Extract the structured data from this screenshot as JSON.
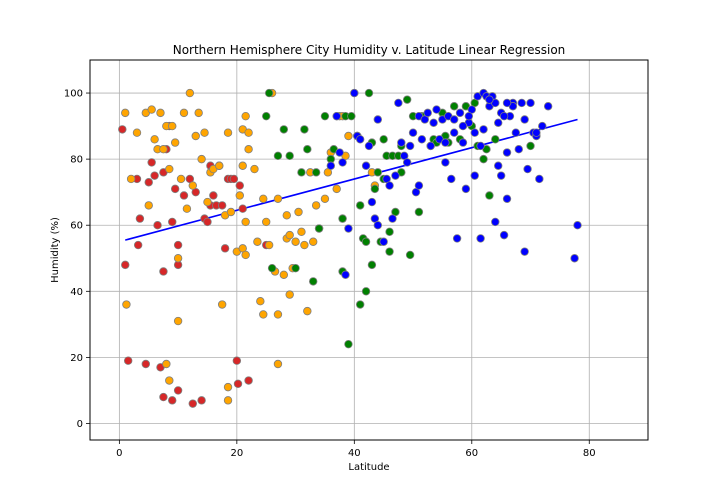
{
  "chart_data": {
    "type": "scatter",
    "title": "Northern Hemisphere City Humidity v. Latitude Linear Regression",
    "xlabel": "Latitude",
    "ylabel": "Humidity (%)",
    "xlim": [
      -5,
      90
    ],
    "ylim": [
      -5,
      110
    ],
    "xticks": [
      0,
      20,
      40,
      60,
      80
    ],
    "yticks": [
      0,
      20,
      40,
      60,
      80,
      100
    ],
    "grid": true,
    "regression_line": {
      "color": "#0000ff",
      "x": [
        1,
        78
      ],
      "y": [
        55.5,
        92
      ]
    },
    "series": [
      {
        "color": "#d62728",
        "points": [
          [
            0.5,
            89
          ],
          [
            1,
            48
          ],
          [
            1.5,
            19
          ],
          [
            3,
            74
          ],
          [
            3.2,
            54
          ],
          [
            3.5,
            62
          ],
          [
            4.5,
            18
          ],
          [
            5,
            73
          ],
          [
            5.5,
            79
          ],
          [
            6,
            75
          ],
          [
            6.5,
            60
          ],
          [
            7,
            17
          ],
          [
            7.5,
            8
          ],
          [
            7.5,
            46
          ],
          [
            7.5,
            76
          ],
          [
            8,
            83
          ],
          [
            8.5,
            90
          ],
          [
            9,
            7
          ],
          [
            9,
            61
          ],
          [
            9.5,
            71
          ],
          [
            10,
            54
          ],
          [
            10,
            10
          ],
          [
            10,
            48
          ],
          [
            11,
            69
          ],
          [
            12,
            74
          ],
          [
            12.5,
            6
          ],
          [
            13,
            70
          ],
          [
            14,
            7
          ],
          [
            14.5,
            62
          ],
          [
            15,
            61
          ],
          [
            15.5,
            66
          ],
          [
            15.5,
            78
          ],
          [
            16,
            69
          ],
          [
            16.5,
            66
          ],
          [
            17,
            78
          ],
          [
            17.5,
            66
          ],
          [
            18,
            53
          ],
          [
            18.5,
            74
          ],
          [
            19,
            74
          ],
          [
            19.5,
            74
          ],
          [
            20,
            19
          ],
          [
            20.2,
            12
          ],
          [
            20.5,
            72
          ],
          [
            21,
            65
          ],
          [
            22,
            13
          ],
          [
            25,
            54
          ]
        ]
      },
      {
        "color": "#ffa500",
        "points": [
          [
            1,
            94
          ],
          [
            1.2,
            36
          ],
          [
            2,
            74
          ],
          [
            3,
            88
          ],
          [
            4.5,
            94
          ],
          [
            5,
            66
          ],
          [
            5.5,
            95
          ],
          [
            6,
            86
          ],
          [
            6.5,
            83
          ],
          [
            7,
            94
          ],
          [
            7.5,
            83
          ],
          [
            8,
            90
          ],
          [
            8,
            18
          ],
          [
            8.5,
            13
          ],
          [
            8.5,
            77
          ],
          [
            9,
            90
          ],
          [
            9.5,
            85
          ],
          [
            10,
            31
          ],
          [
            10,
            50
          ],
          [
            10.5,
            74
          ],
          [
            11,
            94
          ],
          [
            11.5,
            65
          ],
          [
            12,
            100
          ],
          [
            12.5,
            72
          ],
          [
            13,
            87
          ],
          [
            13.5,
            94
          ],
          [
            14,
            80
          ],
          [
            14.5,
            88
          ],
          [
            15,
            67
          ],
          [
            15.5,
            76
          ],
          [
            16,
            77
          ],
          [
            17,
            78
          ],
          [
            17.5,
            36
          ],
          [
            18,
            63
          ],
          [
            18.5,
            88
          ],
          [
            18.5,
            7
          ],
          [
            18.5,
            11
          ],
          [
            19,
            64
          ],
          [
            20,
            52
          ],
          [
            20.5,
            69
          ],
          [
            21,
            53
          ],
          [
            21,
            78
          ],
          [
            21,
            89
          ],
          [
            21.5,
            93
          ],
          [
            21.5,
            61
          ],
          [
            21.5,
            51
          ],
          [
            22,
            88
          ],
          [
            22,
            83
          ],
          [
            23,
            77
          ],
          [
            23.5,
            55
          ],
          [
            24,
            37
          ],
          [
            24.5,
            33
          ],
          [
            24.5,
            68
          ],
          [
            25,
            61
          ],
          [
            25.5,
            54
          ],
          [
            26,
            100
          ],
          [
            26.5,
            46
          ],
          [
            27,
            18
          ],
          [
            27,
            33
          ],
          [
            27,
            68
          ],
          [
            28,
            45
          ],
          [
            28.5,
            56
          ],
          [
            28.5,
            63
          ],
          [
            29,
            57
          ],
          [
            29,
            39
          ],
          [
            29.5,
            47
          ],
          [
            30,
            55
          ],
          [
            30.5,
            64
          ],
          [
            31,
            58
          ],
          [
            31.5,
            54
          ],
          [
            32,
            34
          ],
          [
            32.5,
            76
          ],
          [
            33,
            55
          ],
          [
            33.5,
            66
          ],
          [
            34,
            59
          ],
          [
            35,
            68
          ],
          [
            35.5,
            76
          ],
          [
            36,
            82
          ],
          [
            37,
            71
          ],
          [
            37.5,
            93
          ],
          [
            38,
            62
          ],
          [
            38,
            93
          ],
          [
            38.5,
            81
          ],
          [
            39,
            87
          ],
          [
            43,
            76
          ],
          [
            43.5,
            72
          ]
        ]
      },
      {
        "color": "#008000",
        "points": [
          [
            25,
            93
          ],
          [
            25.5,
            100
          ],
          [
            26,
            47
          ],
          [
            27,
            81
          ],
          [
            28,
            89
          ],
          [
            29,
            81
          ],
          [
            30,
            47
          ],
          [
            31,
            76
          ],
          [
            31.5,
            89
          ],
          [
            32,
            83
          ],
          [
            33,
            43
          ],
          [
            33.5,
            76
          ],
          [
            34,
            59
          ],
          [
            35,
            93
          ],
          [
            36,
            80
          ],
          [
            36.5,
            83
          ],
          [
            37,
            93
          ],
          [
            38,
            46
          ],
          [
            38,
            62
          ],
          [
            38.5,
            93
          ],
          [
            39,
            24
          ],
          [
            39.5,
            93
          ],
          [
            40,
            100
          ],
          [
            40.5,
            87
          ],
          [
            41,
            66
          ],
          [
            41,
            36
          ],
          [
            41.5,
            56
          ],
          [
            42,
            40
          ],
          [
            42,
            55
          ],
          [
            42.5,
            100
          ],
          [
            43,
            48
          ],
          [
            43,
            85
          ],
          [
            43.5,
            71
          ],
          [
            44,
            76
          ],
          [
            44.5,
            55
          ],
          [
            45,
            86
          ],
          [
            45,
            74
          ],
          [
            45.5,
            81
          ],
          [
            46,
            52
          ],
          [
            46,
            58
          ],
          [
            46.5,
            81
          ],
          [
            47,
            64
          ],
          [
            47.5,
            81
          ],
          [
            48,
            76
          ],
          [
            48,
            84
          ],
          [
            49,
            98
          ],
          [
            49.5,
            51
          ],
          [
            50,
            93
          ],
          [
            51,
            64
          ],
          [
            51.5,
            93
          ],
          [
            52,
            93
          ],
          [
            53,
            84
          ],
          [
            53.5,
            86
          ],
          [
            54,
            85
          ],
          [
            55,
            94
          ],
          [
            55.5,
            87
          ],
          [
            56,
            85
          ],
          [
            57,
            96
          ],
          [
            58,
            86
          ],
          [
            59,
            96
          ],
          [
            60,
            90
          ],
          [
            60.5,
            97
          ],
          [
            61,
            84
          ],
          [
            62,
            80
          ],
          [
            62.5,
            83
          ],
          [
            63,
            69
          ],
          [
            64,
            86
          ],
          [
            70,
            84
          ]
        ]
      },
      {
        "color": "#0000ff",
        "points": [
          [
            36,
            78
          ],
          [
            37,
            93
          ],
          [
            37.5,
            82
          ],
          [
            38,
            79
          ],
          [
            38.5,
            45
          ],
          [
            39,
            59
          ],
          [
            40,
            100
          ],
          [
            40.5,
            87
          ],
          [
            41,
            86
          ],
          [
            42,
            78
          ],
          [
            42.5,
            84
          ],
          [
            43,
            67
          ],
          [
            43.5,
            62
          ],
          [
            44,
            92
          ],
          [
            44,
            60
          ],
          [
            45,
            55
          ],
          [
            45.5,
            74
          ],
          [
            46,
            72
          ],
          [
            46.5,
            62
          ],
          [
            47,
            75
          ],
          [
            47.5,
            97
          ],
          [
            48,
            85
          ],
          [
            48.5,
            81
          ],
          [
            49,
            79
          ],
          [
            49.5,
            84
          ],
          [
            50,
            88
          ],
          [
            50.5,
            70
          ],
          [
            51,
            72
          ],
          [
            51,
            93
          ],
          [
            51.5,
            86
          ],
          [
            52,
            92
          ],
          [
            52.5,
            94
          ],
          [
            53,
            84
          ],
          [
            54,
            95
          ],
          [
            54.5,
            86
          ],
          [
            55,
            92
          ],
          [
            55.5,
            79
          ],
          [
            56,
            93
          ],
          [
            56.5,
            74
          ],
          [
            57,
            92
          ],
          [
            57.5,
            56
          ],
          [
            58,
            94
          ],
          [
            58.5,
            85
          ],
          [
            59,
            71
          ],
          [
            59.5,
            91
          ],
          [
            60,
            95
          ],
          [
            60.5,
            88
          ],
          [
            61,
            99
          ],
          [
            61.5,
            56
          ],
          [
            62,
            100
          ],
          [
            62.5,
            99
          ],
          [
            63,
            96
          ],
          [
            63.5,
            99
          ],
          [
            64,
            61
          ],
          [
            64.5,
            78
          ],
          [
            65,
            94
          ],
          [
            65.5,
            57
          ],
          [
            66,
            82
          ],
          [
            66.5,
            93
          ],
          [
            67,
            97
          ],
          [
            67.5,
            88
          ],
          [
            68,
            83
          ],
          [
            69,
            92
          ],
          [
            69.5,
            77
          ],
          [
            70,
            97
          ],
          [
            70.5,
            88
          ],
          [
            71,
            87
          ],
          [
            71.5,
            74
          ],
          [
            72,
            90
          ],
          [
            73,
            96
          ],
          [
            77.5,
            50
          ],
          [
            78,
            60
          ],
          [
            65,
            75
          ],
          [
            66,
            68
          ],
          [
            64,
            97
          ],
          [
            62,
            89
          ],
          [
            60.5,
            75
          ],
          [
            63,
            98
          ],
          [
            65.5,
            93
          ],
          [
            67,
            96
          ],
          [
            68.5,
            97
          ],
          [
            66,
            97
          ],
          [
            64.5,
            91
          ],
          [
            69,
            52
          ],
          [
            71,
            88
          ],
          [
            61.5,
            84
          ],
          [
            59.5,
            93
          ],
          [
            58.5,
            90
          ],
          [
            57,
            88
          ],
          [
            55.5,
            85
          ],
          [
            53.5,
            91
          ]
        ]
      }
    ]
  }
}
